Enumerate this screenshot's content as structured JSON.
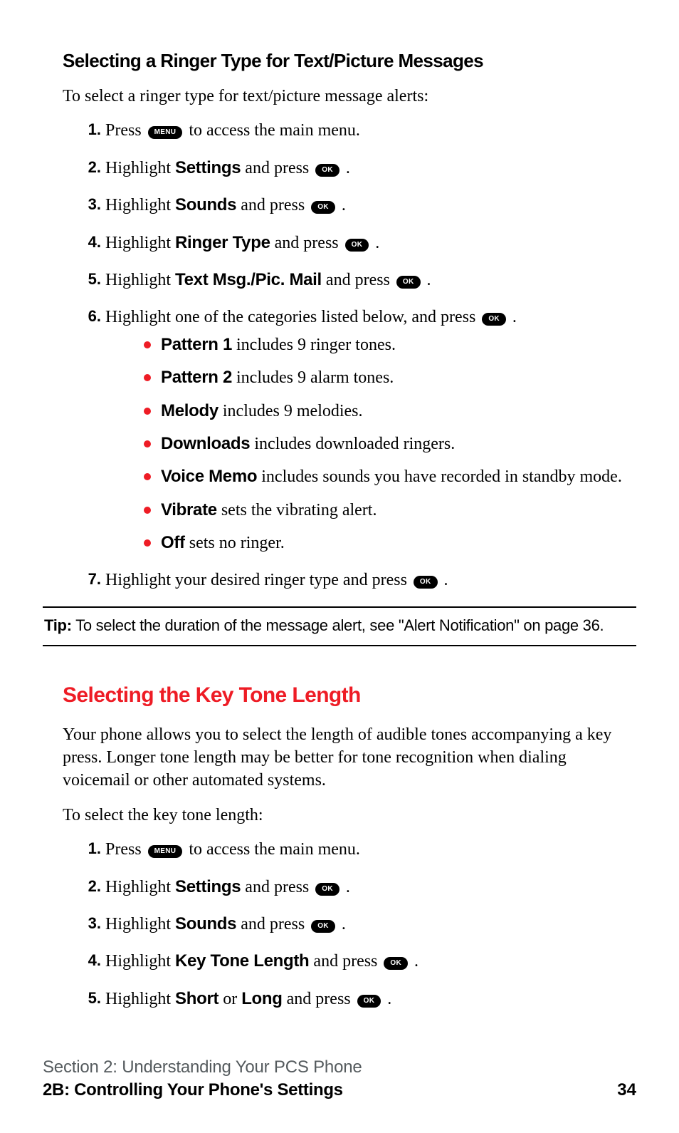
{
  "colors": {
    "accent_red": "#ee1c25",
    "text": "#000000",
    "footer_gray": "#555b5e",
    "key_bg": "#000000",
    "key_fg": "#ffffff",
    "background": "#ffffff"
  },
  "keys": {
    "menu": "MENU",
    "ok": "OK"
  },
  "section1": {
    "heading": "Selecting a Ringer Type for Text/Picture Messages",
    "intro": "To select a ringer type for text/picture message alerts:",
    "steps": [
      {
        "num": "1.",
        "pre": "Press ",
        "key": "menu",
        "post": " to access the main menu."
      },
      {
        "num": "2.",
        "pre": "Highlight ",
        "bold": "Settings",
        "mid": " and press ",
        "key": "ok",
        "post": " ."
      },
      {
        "num": "3.",
        "pre": "Highlight ",
        "bold": "Sounds",
        "mid": " and press ",
        "key": "ok",
        "post": " ."
      },
      {
        "num": "4.",
        "pre": "Highlight ",
        "bold": "Ringer Type",
        "mid": " and press ",
        "key": "ok",
        "post": " ."
      },
      {
        "num": "5.",
        "pre": "Highlight ",
        "bold": "Text Msg./Pic. Mail",
        "mid": " and press ",
        "key": "ok",
        "post": " ."
      },
      {
        "num": "6.",
        "pre": "Highlight one of the categories listed below, and press ",
        "key": "ok",
        "post": " ."
      },
      {
        "num": "7.",
        "pre": "Highlight your desired ringer type and press ",
        "key": "ok",
        "post": " ."
      }
    ],
    "bullets": [
      {
        "bold": "Pattern 1",
        "rest": " includes 9 ringer tones."
      },
      {
        "bold": "Pattern 2",
        "rest": " includes 9 alarm tones."
      },
      {
        "bold": "Melody",
        "rest": " includes 9 melodies."
      },
      {
        "bold": "Downloads",
        "rest": " includes downloaded ringers."
      },
      {
        "bold": "Voice Memo",
        "rest": " includes sounds you have recorded in standby mode."
      },
      {
        "bold": "Vibrate",
        "rest": " sets the vibrating alert."
      },
      {
        "bold": "Off",
        "rest": " sets no ringer."
      }
    ]
  },
  "tip": {
    "label": "Tip:",
    "text": " To select the duration of the message alert, see \"Alert Notification\" on page 36."
  },
  "section2": {
    "heading": "Selecting the Key Tone Length",
    "para": "Your phone allows you to select the length of audible tones accompanying a key press. Longer tone length may be better for tone recognition when dialing voicemail or other automated systems.",
    "intro": "To select the key tone length:",
    "steps": [
      {
        "num": "1.",
        "pre": "Press ",
        "key": "menu",
        "post": " to access the main menu."
      },
      {
        "num": "2.",
        "pre": "Highlight ",
        "bold": "Settings",
        "mid": " and press ",
        "key": "ok",
        "post": " ."
      },
      {
        "num": "3.",
        "pre": "Highlight ",
        "bold": "Sounds",
        "mid": " and press ",
        "key": "ok",
        "post": " ."
      },
      {
        "num": "4.",
        "pre": "Highlight ",
        "bold": "Key Tone Length",
        "mid": " and press ",
        "key": "ok",
        "post": " ."
      },
      {
        "num": "5.",
        "pre": "Highlight ",
        "bold": "Short",
        "mid": " or ",
        "bold2": "Long",
        "mid2": " and press ",
        "key": "ok",
        "post": " ."
      }
    ]
  },
  "footer": {
    "top": "Section 2: Understanding Your PCS Phone",
    "bottom": "2B: Controlling Your Phone's Settings",
    "page": "34"
  }
}
